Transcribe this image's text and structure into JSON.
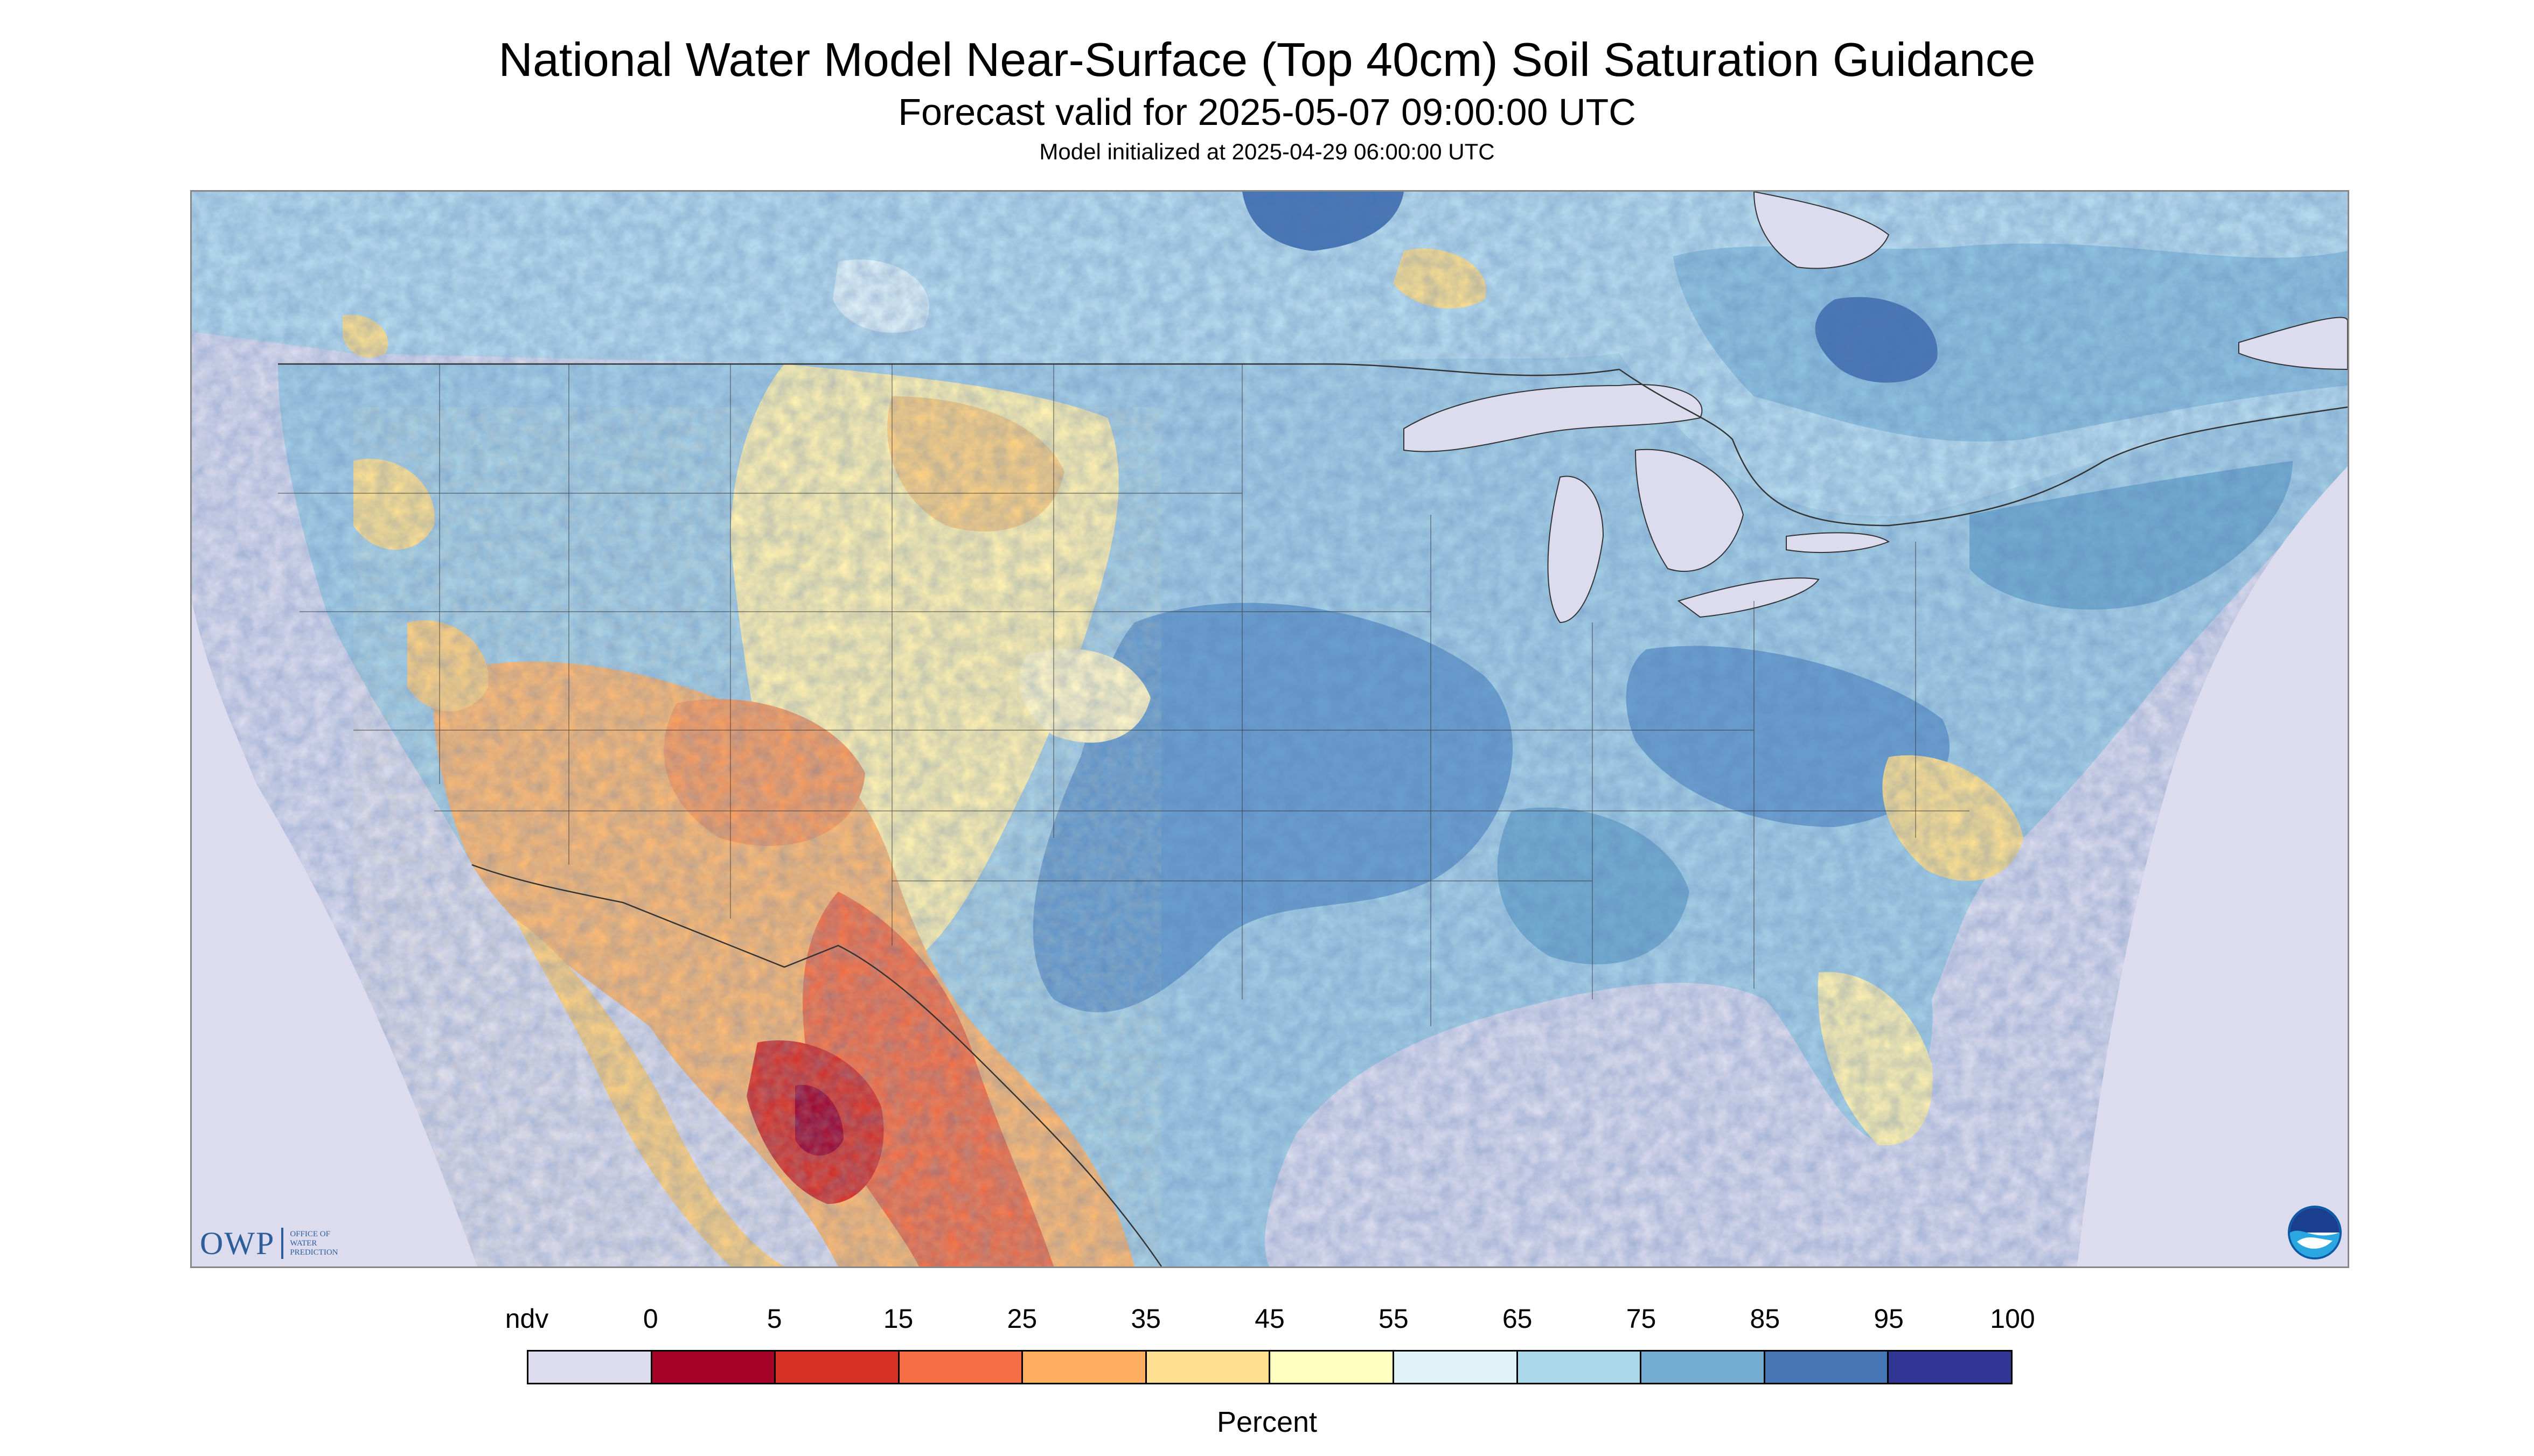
{
  "title": "National Water Model Near-Surface (Top 40cm) Soil Saturation Guidance",
  "subtitle": "Forecast valid for 2025-05-07 09:00:00 UTC",
  "init_line": "Model initialized at 2025-04-29 06:00:00 UTC",
  "legend": {
    "labels": [
      "ndv",
      "0",
      "5",
      "15",
      "25",
      "35",
      "45",
      "55",
      "65",
      "75",
      "85",
      "95",
      "100"
    ],
    "colors": [
      "#dcdcee",
      "#a50026",
      "#d73027",
      "#f46d43",
      "#fdae61",
      "#fee090",
      "#ffffbf",
      "#e0f3f8",
      "#abd9e9",
      "#74add1",
      "#4575b4",
      "#313695"
    ],
    "units": "Percent"
  },
  "logos": {
    "owp": {
      "mark": "OWP",
      "text": "OFFICE OF WATER PREDICTION"
    },
    "noaa": {
      "mark": "NOAA"
    }
  },
  "map_colors": {
    "ocean": "#dcdcee",
    "canada_base": "#b8dcee",
    "border": "#333333"
  }
}
